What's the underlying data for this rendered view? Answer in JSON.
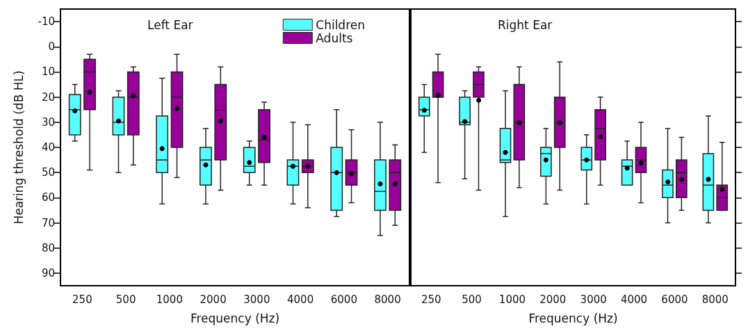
{
  "chart_data": [
    {
      "type": "box",
      "title": "Left Ear",
      "xlabel": "Frequency (Hz)",
      "ylabel": "Hearing threshold (dB HL)",
      "categories": [
        "250",
        "500",
        "1000",
        "2000",
        "3000",
        "4000",
        "6000",
        "8000"
      ],
      "legend": "top right",
      "ylim": [
        95,
        -15
      ],
      "yticks": [
        -10,
        0,
        10,
        20,
        30,
        40,
        50,
        60,
        70,
        80,
        90
      ],
      "series": [
        {
          "name": "Children",
          "color": "#55ffff",
          "boxes": [
            {
              "low": 15,
              "q1": 19,
              "median": 25,
              "q3": 35,
              "high": 37.5,
              "mean": 25.5
            },
            {
              "low": 17.5,
              "q1": 20,
              "median": 30,
              "q3": 35,
              "high": 50,
              "mean": 29.5
            },
            {
              "low": 12.5,
              "q1": 27.5,
              "median": 45,
              "q3": 50,
              "high": 62.5,
              "mean": 40.5
            },
            {
              "low": 32.5,
              "q1": 40,
              "median": 45,
              "q3": 55,
              "high": 62.5,
              "mean": 47
            },
            {
              "low": 37.5,
              "q1": 40,
              "median": 47.5,
              "q3": 50,
              "high": 55,
              "mean": 46
            },
            {
              "low": 30,
              "q1": 45,
              "median": 47.5,
              "q3": 55,
              "high": 62.5,
              "mean": 47.5
            },
            {
              "low": 25,
              "q1": 40,
              "median": 50,
              "q3": 65,
              "high": 67.5,
              "mean": 50
            },
            {
              "low": 30,
              "q1": 45,
              "median": 57.5,
              "q3": 65,
              "high": 75,
              "mean": 54.5
            }
          ]
        },
        {
          "name": "Adults",
          "color": "#990099",
          "boxes": [
            {
              "low": 3,
              "q1": 5,
              "median": 10,
              "q3": 25,
              "high": 49,
              "mean": 18
            },
            {
              "low": 8,
              "q1": 10,
              "median": 20,
              "q3": 35,
              "high": 47,
              "mean": 19.5
            },
            {
              "low": 3,
              "q1": 10,
              "median": 20,
              "q3": 40,
              "high": 52,
              "mean": 24.5
            },
            {
              "low": 8,
              "q1": 15,
              "median": 25,
              "q3": 45,
              "high": 57,
              "mean": 29.5
            },
            {
              "low": 22,
              "q1": 25,
              "median": 37,
              "q3": 46,
              "high": 55,
              "mean": 36
            },
            {
              "low": 31,
              "q1": 45,
              "median": 47.5,
              "q3": 50,
              "high": 64,
              "mean": 47.5
            },
            {
              "low": 33,
              "q1": 45,
              "median": 50,
              "q3": 55,
              "high": 62,
              "mean": 50.5
            },
            {
              "low": 39,
              "q1": 45,
              "median": 50,
              "q3": 65,
              "high": 71,
              "mean": 54.5
            }
          ]
        }
      ]
    },
    {
      "type": "box",
      "title": "Right Ear",
      "xlabel": "Frequency (Hz)",
      "categories": [
        "250",
        "500",
        "1000",
        "2000",
        "3000",
        "4000",
        "6000",
        "8000"
      ],
      "ylim": [
        95,
        -15
      ],
      "yticks": [
        {
          "value": -10,
          "label": null
        },
        {
          "value": 0,
          "label": null
        },
        {
          "value": 10,
          "label": null
        },
        {
          "value": 20,
          "label": null
        },
        {
          "value": 30,
          "label": null
        },
        {
          "value": 40,
          "label": null
        },
        {
          "value": 50,
          "label": null
        },
        {
          "value": 60,
          "label": null
        },
        {
          "value": 70,
          "label": null
        },
        {
          "value": 80,
          "label": null
        },
        {
          "value": 90,
          "label": null
        }
      ],
      "tick_labels": "x",
      "series": [
        {
          "color": "#55ffff",
          "boxes": [
            {
              "low": 15,
              "q1": 20,
              "median": 25,
              "q3": 27.5,
              "high": 42,
              "mean": 25
            },
            {
              "low": 17.5,
              "q1": 20,
              "median": 30,
              "q3": 31,
              "high": 52.5,
              "mean": 29.5
            },
            {
              "low": 17.5,
              "q1": 32.5,
              "median": 45,
              "q3": 46,
              "high": 67.5,
              "mean": 42
            },
            {
              "low": 32.5,
              "q1": 40,
              "median": 42.5,
              "q3": 51.5,
              "high": 62.5,
              "mean": 45
            },
            {
              "low": 35,
              "q1": 40,
              "median": 45,
              "q3": 49,
              "high": 62.5,
              "mean": 45
            },
            {
              "low": 37.5,
              "q1": 45,
              "median": 47.5,
              "q3": 55,
              "high": 55,
              "mean": 48
            },
            {
              "low": 32.5,
              "q1": 49,
              "median": 55,
              "q3": 60,
              "high": 70,
              "mean": 53.5
            },
            {
              "low": 27.5,
              "q1": 42.5,
              "median": 55,
              "q3": 65,
              "high": 70,
              "mean": 52.5
            }
          ]
        },
        {
          "color": "#990099",
          "boxes": [
            {
              "low": 3,
              "q1": 10,
              "median": 20,
              "q3": 20,
              "high": 54,
              "mean": 19
            },
            {
              "low": 8,
              "q1": 10,
              "median": 15,
              "q3": 20,
              "high": 57,
              "mean": 21
            },
            {
              "low": 8,
              "q1": 15,
              "median": 30,
              "q3": 45,
              "high": 56,
              "mean": 30
            },
            {
              "low": 6,
              "q1": 20,
              "median": 30,
              "q3": 40,
              "high": 57,
              "mean": 30
            },
            {
              "low": 20,
              "q1": 25,
              "median": 32.5,
              "q3": 45,
              "high": 55,
              "mean": 35.5
            },
            {
              "low": 30,
              "q1": 40,
              "median": 45,
              "q3": 50,
              "high": 62,
              "mean": 46
            },
            {
              "low": 36,
              "q1": 45,
              "median": 50,
              "q3": 60,
              "high": 65,
              "mean": 52.5
            },
            {
              "low": 38,
              "q1": 55,
              "median": 60,
              "q3": 65,
              "high": 65,
              "mean": 56.5
            }
          ]
        }
      ]
    }
  ]
}
